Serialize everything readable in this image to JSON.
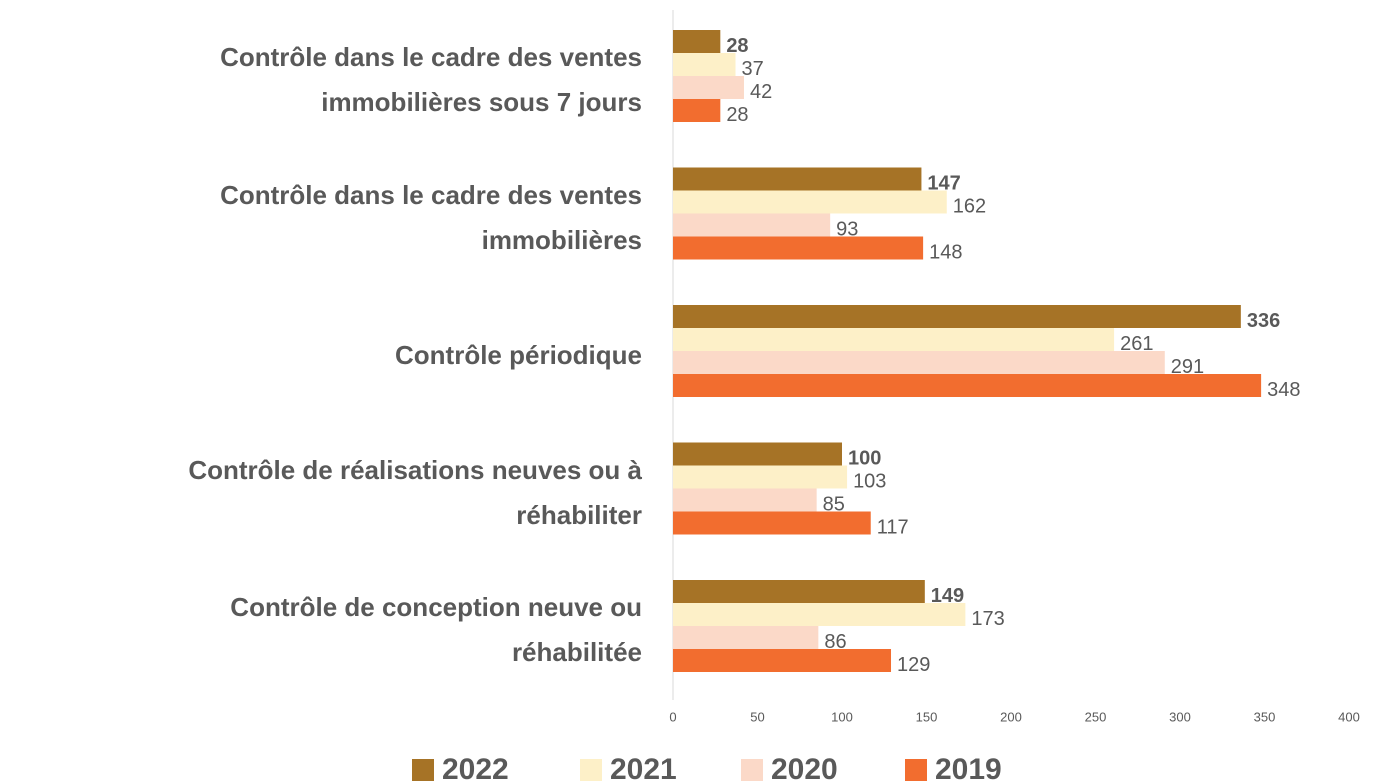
{
  "chart_data": {
    "type": "hbar",
    "categories": [
      "Contrôle dans le cadre des ventes immobilières sous 7 jours",
      "Contrôle dans le cadre des ventes immobilières",
      "Contrôle périodique",
      "Contrôle de réalisations neuves ou à réhabiliter",
      "Contrôle de conception neuve ou réhabilitée"
    ],
    "series": [
      {
        "name": "2022",
        "color": "#a67326",
        "values": [
          28,
          147,
          336,
          100,
          149
        ]
      },
      {
        "name": "2021",
        "color": "#fdf0c8",
        "values": [
          37,
          162,
          261,
          103,
          173
        ]
      },
      {
        "name": "2020",
        "color": "#fbd9c8",
        "values": [
          42,
          93,
          291,
          85,
          86
        ]
      },
      {
        "name": "2019",
        "color": "#f26d2f",
        "values": [
          28,
          148,
          348,
          117,
          129
        ]
      }
    ],
    "xlim": [
      0,
      400
    ],
    "xticks": [
      0,
      50,
      100,
      150,
      200,
      250,
      300,
      350,
      400
    ],
    "grid": false,
    "legend": "bottom"
  }
}
